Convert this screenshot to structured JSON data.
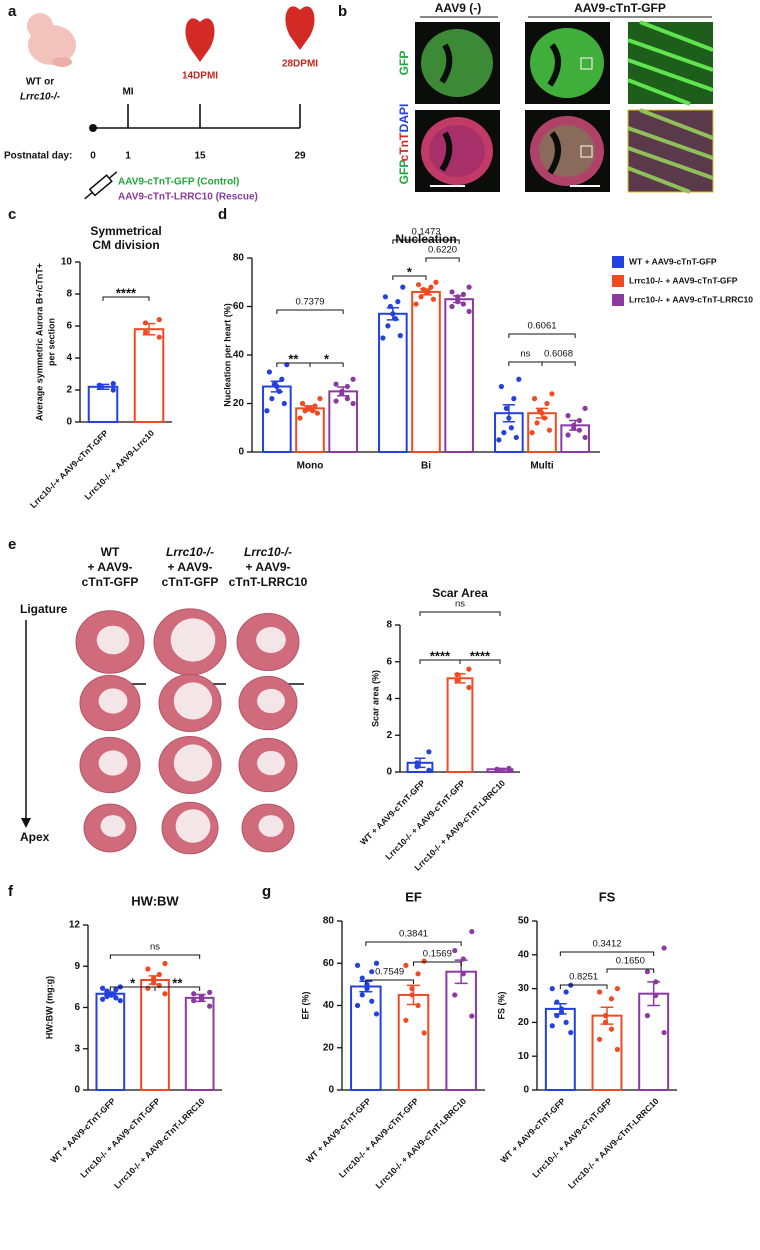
{
  "panels": [
    "a",
    "b",
    "c",
    "d",
    "e",
    "f",
    "g"
  ],
  "timeline": {
    "group": "WT or",
    "genotype": "Lrrc10-/-",
    "events": [
      "MI",
      "14DPMI",
      "28DPMI"
    ],
    "axis_label": "Postnatal day:",
    "days": [
      0,
      1,
      15,
      29
    ],
    "treatments": [
      "AAV9-cTnT-GFP (Control)",
      "AAV9-cTnT-LRRC10 (Rescue)"
    ]
  },
  "imaging": {
    "columns": [
      "AAV9 (-)",
      "AAV9-cTnT-GFP"
    ],
    "rows": [
      [
        "GFP"
      ],
      [
        "GFP",
        "cTnT",
        "DAPI"
      ]
    ]
  },
  "sections": {
    "columns": [
      [
        "WT",
        "+ AAV9-",
        "cTnT-GFP"
      ],
      [
        "Lrrc10-/-",
        "+ AAV9-",
        "cTnT-GFP"
      ],
      [
        "Lrrc10-/-",
        "+ AAV9-",
        "cTnT-LRRC10"
      ]
    ],
    "top": "Ligature",
    "bottom": "Apex"
  },
  "chart_data": [
    {
      "type": "bar",
      "title": [
        "Symmetrical",
        "CM division"
      ],
      "ylabel": [
        "Average symmetric Aurora B+/cTnT+",
        "per section"
      ],
      "categories": [
        "Lrrc10-/-+ AAV9-cTnT-GFP",
        "Lrrc10-/- + AAV9-Lrrc10"
      ],
      "colors": [
        "#2340e0",
        "#f04a23"
      ],
      "values": [
        2.2,
        5.8
      ],
      "errors": [
        0.15,
        0.35
      ],
      "points": [
        [
          2.0,
          2.2,
          2.3,
          2.4
        ],
        [
          5.3,
          5.6,
          6.2,
          6.4
        ]
      ],
      "ylim": [
        0,
        10
      ],
      "yticks": [
        0,
        2,
        4,
        6,
        8,
        10
      ],
      "annotations": [
        "****"
      ]
    },
    {
      "type": "grouped_bar",
      "title": "Nucleation",
      "ylabel": "Nucleation per heart (%)",
      "categories": [
        "Mono",
        "Bi",
        "Multi"
      ],
      "series": [
        {
          "name": "WT + AAV9-cTnT-GFP",
          "color": "#2340e0",
          "values": [
            27,
            57,
            16
          ],
          "errors": [
            2.2,
            2.5,
            3.5
          ],
          "points": [
            [
              36,
              33,
              30,
              28,
              27,
              25,
              22,
              20,
              17
            ],
            [
              68,
              64,
              62,
              60,
              57,
              55,
              52,
              48,
              47
            ],
            [
              30,
              27,
              22,
              18,
              14,
              10,
              8,
              6,
              5
            ]
          ]
        },
        {
          "name": "Lrrc10-/- + AAV9-cTnT-GFP",
          "color": "#f04a23",
          "values": [
            18,
            66,
            16
          ],
          "errors": [
            1,
            1.2,
            2
          ],
          "points": [
            [
              22,
              20,
              19,
              18,
              18,
              17,
              17,
              16,
              14
            ],
            [
              70,
              69,
              68,
              67,
              66,
              66,
              64,
              63,
              61
            ],
            [
              24,
              22,
              20,
              17,
              16,
              14,
              12,
              9,
              8
            ]
          ]
        },
        {
          "name": "Lrrc10-/- + AAV9-cTnT-LRRC10",
          "color": "#8a3aa0",
          "values": [
            25,
            63,
            11
          ],
          "errors": [
            1.8,
            1.4,
            2
          ],
          "points": [
            [
              30,
              28,
              27,
              25,
              24,
              22,
              21,
              20
            ],
            [
              68,
              66,
              65,
              64,
              62,
              61,
              60,
              58
            ],
            [
              18,
              15,
              13,
              11,
              10,
              9,
              7,
              6
            ]
          ]
        }
      ],
      "ylim": [
        0,
        80
      ],
      "yticks": [
        0,
        20,
        40,
        60,
        80
      ],
      "legend": "right",
      "annotations": [
        "0.7379",
        "**",
        "*",
        "0.1473",
        "*",
        "0.6220",
        "0.6061",
        "ns",
        "0.6068"
      ]
    },
    {
      "type": "bar",
      "title": "Scar Area",
      "ylabel": "Scar area (%)",
      "categories": [
        "WT + AAV9-cTnT-GFP",
        "Lrrc10-/- + AAV9-cTnT-GFP",
        "Lrrc10-/- + AAV9-cTnT-LRRC10"
      ],
      "colors": [
        "#2340e0",
        "#f04a23",
        "#8a3aa0"
      ],
      "values": [
        0.5,
        5.1,
        0.15
      ],
      "errors": [
        0.25,
        0.25,
        0.05
      ],
      "points": [
        [
          1.1,
          0.5,
          0.3,
          0.1
        ],
        [
          5.6,
          5.3,
          5.0,
          4.6
        ],
        [
          0.2,
          0.15,
          0.1,
          0.1
        ]
      ],
      "ylim": [
        0,
        8
      ],
      "yticks": [
        0,
        2,
        4,
        6,
        8
      ],
      "annotations": [
        "ns",
        "****",
        "****"
      ]
    },
    {
      "type": "bar",
      "title": "HW:BW",
      "ylabel": "HW:BW (mg:g)",
      "categories": [
        "WT + AAV9-cTnT-GFP",
        "Lrrc10-/- + AAV9-cTnT-GFP",
        "Lrrc10-/- + AAV9-cTnT-LRRC10"
      ],
      "colors": [
        "#2340e0",
        "#f04a23",
        "#8a3aa0"
      ],
      "values": [
        7.0,
        8.0,
        6.7
      ],
      "errors": [
        0.12,
        0.3,
        0.25
      ],
      "points": [
        [
          7.5,
          7.4,
          7.3,
          7.2,
          7.0,
          6.9,
          6.8,
          6.7,
          6.6,
          6.5
        ],
        [
          9.2,
          8.8,
          8.4,
          8.1,
          7.8,
          7.6,
          7.4,
          7.0
        ],
        [
          7.1,
          7.0,
          6.8,
          6.6,
          6.5,
          6.1
        ]
      ],
      "ylim": [
        0,
        12
      ],
      "yticks": [
        0,
        3,
        6,
        9,
        12
      ],
      "annotations": [
        "ns",
        "*",
        "**"
      ]
    },
    {
      "type": "bar",
      "title": "EF",
      "ylabel": "EF (%)",
      "categories": [
        "WT + AAV9-cTnT-GFP",
        "Lrrc10-/- + AAV9-cTnT-GFP",
        "Lrrc10-/- + AAV9-cTnT-LRRC10"
      ],
      "colors": [
        "#2340e0",
        "#f04a23",
        "#8a3aa0"
      ],
      "values": [
        49,
        45,
        56
      ],
      "errors": [
        2.5,
        4.5,
        5.5
      ],
      "points": [
        [
          60,
          59,
          56,
          53,
          50,
          48,
          45,
          42,
          40,
          36
        ],
        [
          61,
          59,
          55,
          48,
          45,
          40,
          33,
          27
        ],
        [
          75,
          66,
          62,
          55,
          45,
          35
        ]
      ],
      "ylim": [
        0,
        80
      ],
      "yticks": [
        0,
        20,
        40,
        60,
        80
      ],
      "annotations": [
        "0.3841",
        "0.7549",
        "0.1569"
      ]
    },
    {
      "type": "bar",
      "title": "FS",
      "ylabel": "FS (%)",
      "categories": [
        "WT + AAV9-cTnT-GFP",
        "Lrrc10-/- + AAV9-cTnT-GFP",
        "Lrrc10-/- + AAV9-cTnT-LRRC10"
      ],
      "colors": [
        "#2340e0",
        "#f04a23",
        "#8a3aa0"
      ],
      "values": [
        24,
        22,
        28.5
      ],
      "errors": [
        1.5,
        2.5,
        3.5
      ],
      "points": [
        [
          31,
          30,
          29,
          26,
          24,
          23,
          22,
          20,
          19,
          17
        ],
        [
          30,
          29,
          27,
          22,
          20,
          18,
          15,
          12
        ],
        [
          42,
          35,
          32,
          28,
          22,
          17
        ]
      ],
      "ylim": [
        0,
        50
      ],
      "yticks": [
        0,
        10,
        20,
        30,
        40,
        50
      ],
      "annotations": [
        "0.3412",
        "0.8251",
        "0.1650"
      ]
    }
  ]
}
